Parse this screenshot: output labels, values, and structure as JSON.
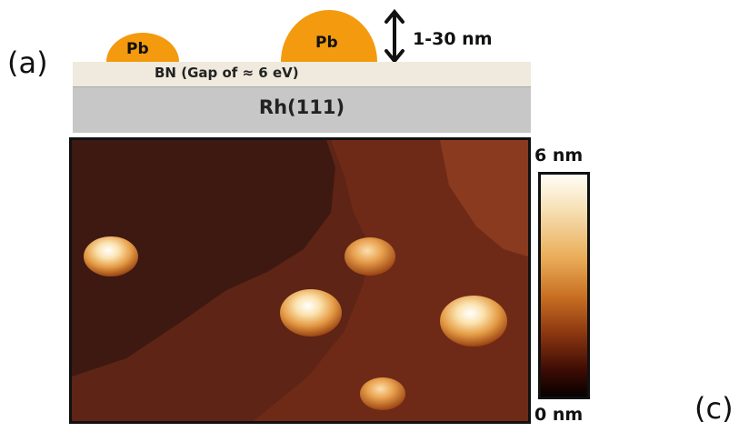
{
  "panel_labels": {
    "a": "(a)",
    "c": "(c)"
  },
  "schematic": {
    "islands": [
      {
        "label": "Pb"
      },
      {
        "label": "Pb"
      }
    ],
    "thickness_label": "1-30 nm",
    "bn_label": "BN (Gap of ≈ 6 eV)",
    "substrate_label": "Rh(111)",
    "colors": {
      "pb": "#f39a0f",
      "bn": "#efeadd",
      "rh": "#c7c7c7"
    }
  },
  "afm_image": {
    "colorbar": {
      "max_label": "6 nm",
      "min_label": "0 nm"
    }
  }
}
